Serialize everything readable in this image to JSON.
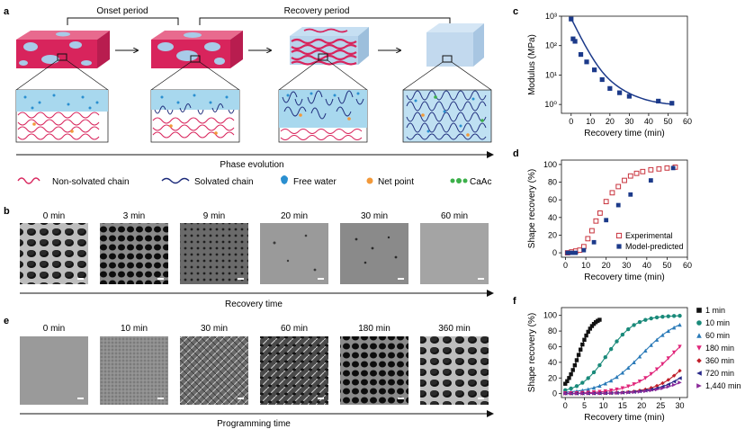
{
  "panels": {
    "a": {
      "label": "a",
      "onset": "Onset period",
      "recovery": "Recovery period",
      "axis": "Phase evolution",
      "legend": [
        "Non-solvated chain",
        "Solvated chain",
        "Free water",
        "Net point",
        "CaAc"
      ],
      "colors": {
        "magenta": "#d8245c",
        "lightblue": "#a8cbe8",
        "navy": "#1c2a7a",
        "orange": "#f2993a",
        "green": "#3cb04a",
        "water": "#2a8fd0"
      }
    },
    "b": {
      "label": "b",
      "times": [
        "0 min",
        "3 min",
        "9 min",
        "20 min",
        "30 min",
        "60 min"
      ],
      "axis": "Recovery time"
    },
    "e": {
      "label": "e",
      "times": [
        "0 min",
        "10 min",
        "30 min",
        "60 min",
        "180 min",
        "360 min"
      ],
      "axis": "Programming time"
    }
  },
  "chart_data": [
    {
      "panel": "c",
      "type": "scatter",
      "xlabel": "Recovery time (min)",
      "ylabel": "Modulus (MPa)",
      "yscale": "log",
      "xlim": [
        -5,
        60
      ],
      "ylim": [
        0.5,
        1000
      ],
      "xticks": [
        "0",
        "10",
        "20",
        "30",
        "40",
        "50",
        "60"
      ],
      "yticks": [
        "10⁰",
        "10¹",
        "10²",
        "10³"
      ],
      "series": [
        {
          "points": [
            [
              0,
              800
            ],
            [
              1,
              170
            ],
            [
              2,
              140
            ],
            [
              5,
              50
            ],
            [
              8,
              28
            ],
            [
              12,
              15
            ],
            [
              16,
              7
            ],
            [
              20,
              3.5
            ],
            [
              25,
              2.5
            ],
            [
              30,
              1.9
            ],
            [
              45,
              1.3
            ],
            [
              52,
              1.1
            ]
          ],
          "color": "#1c3a8a",
          "marker": "square"
        },
        {
          "fit": "exponential decay",
          "x": [
            0,
            52
          ],
          "color": "#1c3a8a"
        }
      ]
    },
    {
      "panel": "d",
      "type": "scatter",
      "xlabel": "Recovery time (min)",
      "ylabel": "Shape recovery (%)",
      "xlim": [
        -2,
        60
      ],
      "ylim": [
        -5,
        105
      ],
      "xticks": [
        "0",
        "10",
        "20",
        "30",
        "40",
        "50",
        "60"
      ],
      "yticks": [
        "0",
        "20",
        "40",
        "60",
        "80",
        "100"
      ],
      "legend_position": "bottom-right",
      "series": [
        {
          "name": "Experimental",
          "color": "#c8323c",
          "marker": "open-square",
          "x": [
            1,
            3,
            5,
            7,
            9,
            11,
            13,
            15,
            17,
            20,
            23,
            26,
            29,
            32,
            35,
            38,
            42,
            46,
            50,
            54
          ],
          "y": [
            0,
            1,
            2,
            3,
            7,
            16,
            25,
            36,
            45,
            58,
            68,
            75,
            82,
            87,
            90,
            92,
            94,
            95,
            96,
            97
          ]
        },
        {
          "name": "Model-predicted",
          "color": "#1c3a8a",
          "marker": "square",
          "x": [
            1,
            3,
            5,
            9,
            14,
            20,
            26,
            32,
            42,
            53
          ],
          "y": [
            0,
            0,
            0,
            3,
            12,
            37,
            54,
            66,
            82,
            96
          ]
        }
      ]
    },
    {
      "panel": "f",
      "type": "line",
      "xlabel": "Recovery time (min)",
      "ylabel": "Shape recovery (%)",
      "xlim": [
        -1,
        32
      ],
      "ylim": [
        -5,
        110
      ],
      "xticks": [
        "0",
        "5",
        "10",
        "15",
        "20",
        "25",
        "30"
      ],
      "yticks": [
        "0",
        "20",
        "40",
        "60",
        "80",
        "100"
      ],
      "legend_position": "right",
      "series": [
        {
          "name": "1 min",
          "color": "#111111",
          "marker": "square",
          "k": 0.55,
          "x0": 3.5,
          "max": 99
        },
        {
          "name": "10 min",
          "color": "#1a8a7a",
          "marker": "circle",
          "k": 0.28,
          "x0": 11,
          "max": 100
        },
        {
          "name": "60 min",
          "color": "#2a7ab8",
          "marker": "triangle-up",
          "k": 0.2,
          "x0": 20,
          "max": 100
        },
        {
          "name": "180 min",
          "color": "#e0257a",
          "marker": "triangle-down",
          "k": 0.2,
          "x0": 28,
          "max": 100
        },
        {
          "name": "360 min",
          "color": "#c01f2a",
          "marker": "diamond",
          "k": 0.22,
          "x0": 34,
          "max": 100
        },
        {
          "name": "720 min",
          "color": "#2a2a8a",
          "marker": "triangle-left",
          "k": 0.2,
          "x0": 37,
          "max": 100
        },
        {
          "name": "1,440 min",
          "color": "#8a2a9a",
          "marker": "triangle-right",
          "k": 0.18,
          "x0": 40,
          "max": 100
        }
      ]
    }
  ]
}
